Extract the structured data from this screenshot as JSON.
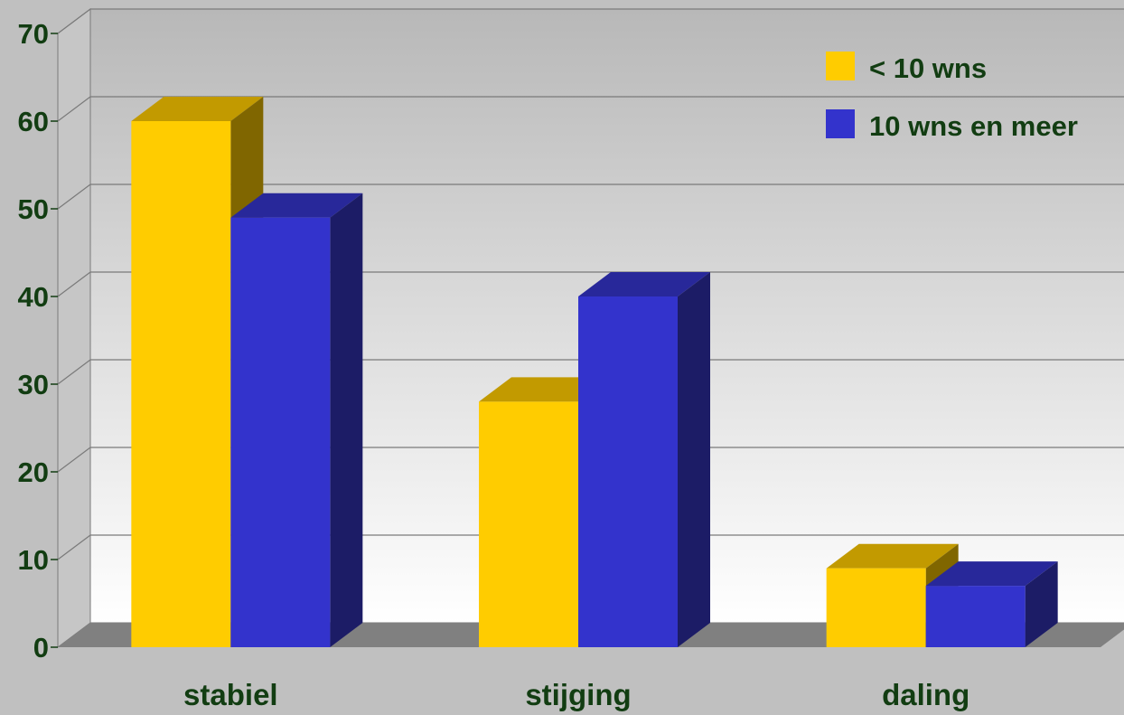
{
  "chart_data": {
    "type": "bar",
    "title": "",
    "xlabel": "",
    "ylabel": "",
    "categories": [
      "stabiel",
      "stijging",
      "daling"
    ],
    "series": [
      {
        "name": "< 10 wns",
        "values": [
          60,
          28,
          9
        ]
      },
      {
        "name": "10 wns en meer",
        "values": [
          49,
          40,
          7
        ]
      }
    ],
    "ylim": [
      0,
      70
    ],
    "yticks": [
      "0",
      "10",
      "20",
      "30",
      "40",
      "50",
      "60",
      "70"
    ],
    "grid": true,
    "legend_position": "top-right",
    "three_d": true
  },
  "colors": {
    "page_background": "#c0c0c0",
    "label_text": "#123d12",
    "gridline": "#7a7a7a",
    "floor": "#808080",
    "series": [
      {
        "front": "#ffcc00",
        "top": "#c29a00",
        "side": "#806600"
      },
      {
        "front": "#3333cc",
        "top": "#28289a",
        "side": "#1c1c66"
      }
    ]
  }
}
